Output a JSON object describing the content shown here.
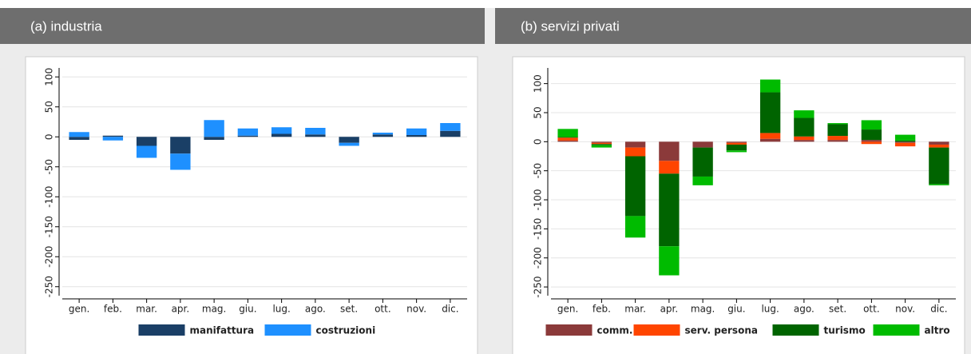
{
  "chart_data": [
    {
      "type": "bar",
      "stacked": true,
      "title": "(a) industria",
      "categories": [
        "gen.",
        "feb.",
        "mar.",
        "apr.",
        "mag.",
        "giu.",
        "lug.",
        "ago.",
        "set.",
        "ott.",
        "nov.",
        "dic."
      ],
      "series": [
        {
          "name": "manifattura",
          "color": "#1a3f66",
          "values": [
            -5,
            2,
            -15,
            -28,
            -5,
            2,
            5,
            4,
            -10,
            4,
            3,
            10
          ]
        },
        {
          "name": "costruzioni",
          "color": "#1e90ff",
          "values": [
            8,
            -6,
            -20,
            -27,
            28,
            12,
            11,
            11,
            -5,
            3,
            11,
            13
          ]
        }
      ],
      "ylim": [
        -265,
        115
      ],
      "yticks": [
        -250,
        -200,
        -150,
        -100,
        -50,
        0,
        50,
        100
      ],
      "grid": true,
      "legend": "bottom"
    },
    {
      "type": "bar",
      "stacked": true,
      "title": "(b) servizi privati",
      "categories": [
        "gen.",
        "feb.",
        "mar.",
        "apr.",
        "mag.",
        "giu.",
        "lug.",
        "ago.",
        "set.",
        "ott.",
        "nov.",
        "dic."
      ],
      "series": [
        {
          "name": "comm.",
          "color": "#8b3a3a",
          "values": [
            2,
            -2,
            -10,
            -33,
            -10,
            -2,
            5,
            3,
            3,
            3,
            -2,
            -5
          ]
        },
        {
          "name": "serv. persona",
          "color": "#ff4500",
          "values": [
            5,
            -2,
            -15,
            -22,
            0,
            -3,
            10,
            6,
            7,
            -4,
            -6,
            -5
          ]
        },
        {
          "name": "turismo",
          "color": "#006400",
          "values": [
            1,
            -2,
            -103,
            -125,
            -50,
            -10,
            70,
            32,
            20,
            18,
            2,
            -63
          ]
        },
        {
          "name": "altro",
          "color": "#00bb00",
          "values": [
            14,
            -4,
            -37,
            -50,
            -15,
            -3,
            22,
            13,
            2,
            16,
            10,
            -2
          ]
        }
      ],
      "ylim": [
        -265,
        127
      ],
      "yticks": [
        -250,
        -200,
        -150,
        -100,
        -50,
        0,
        50,
        100
      ],
      "grid": true,
      "legend": "bottom"
    }
  ]
}
